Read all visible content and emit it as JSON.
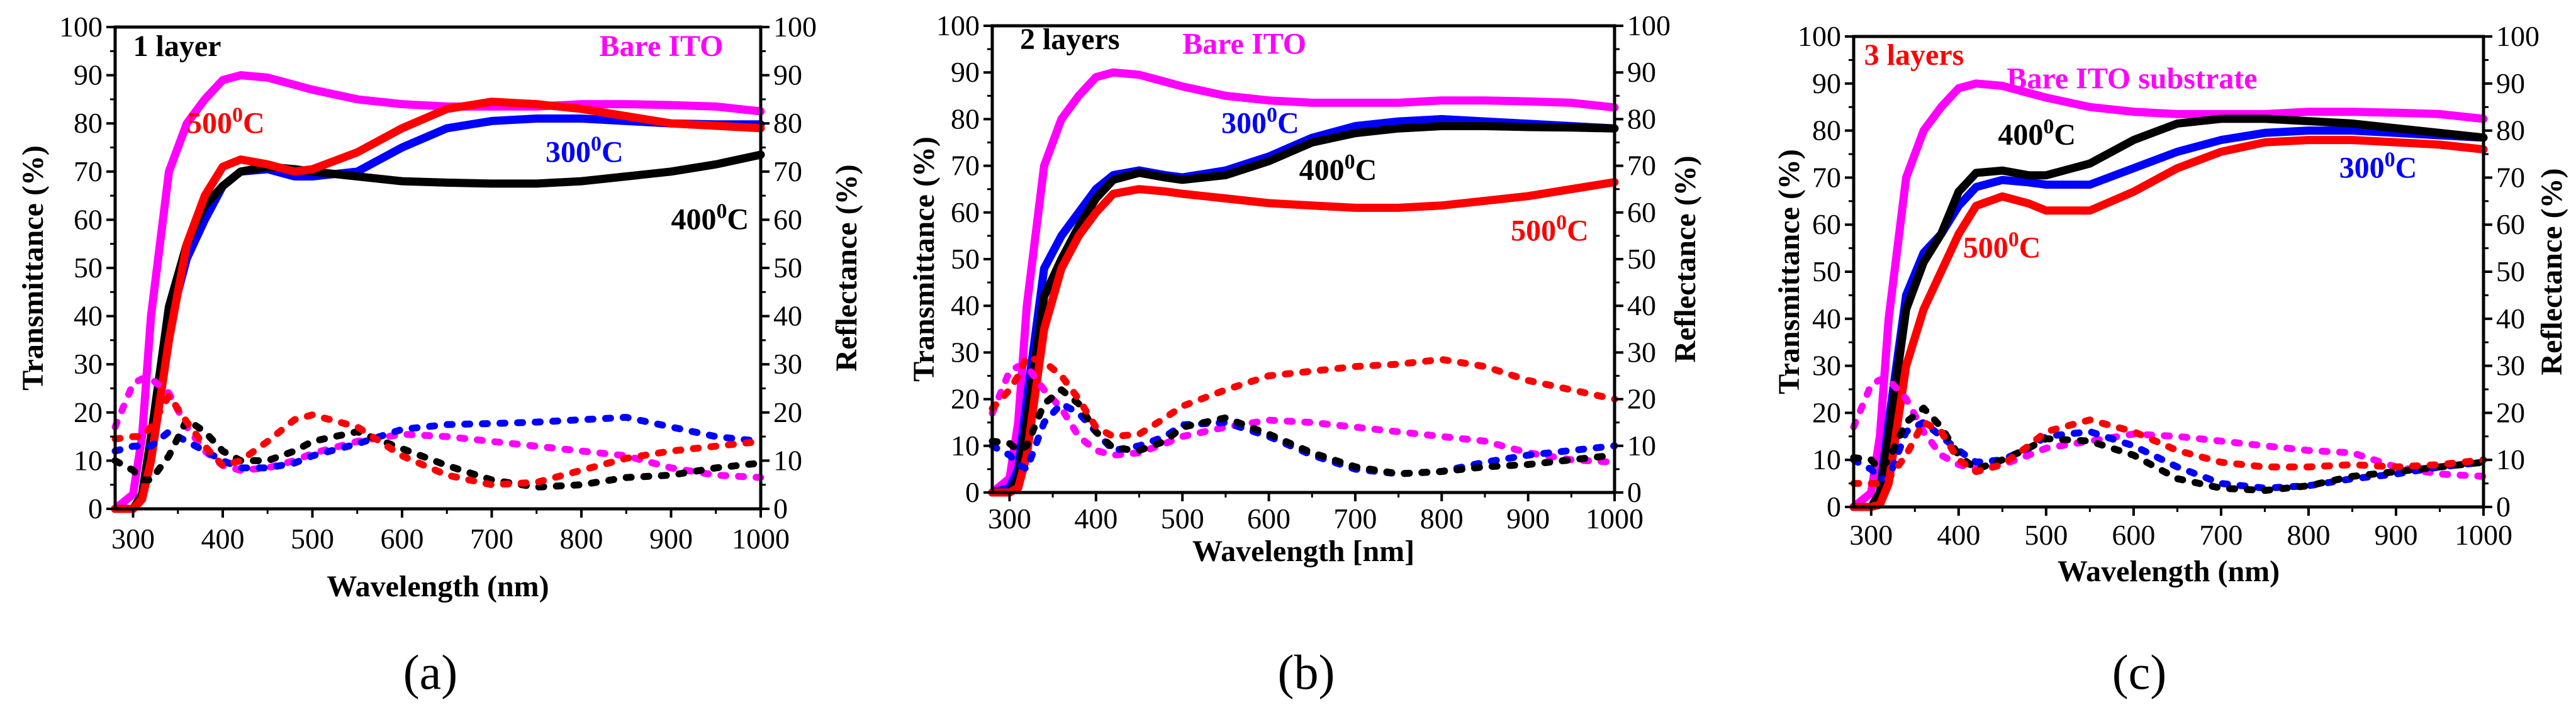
{
  "colors": {
    "bare": "#ff00ff",
    "c300": "#0000ff",
    "c400": "#000000",
    "c500": "#ff0000"
  },
  "chart_data": [
    {
      "type": "line",
      "caption": "(a)",
      "xlabel": "Wavelength (nm)",
      "ylabel_left": "Transmittance (%)",
      "ylabel_right": "Reflectance (%)",
      "xlim": [
        280,
        1000
      ],
      "ylim": [
        0,
        100
      ],
      "xticks": [
        300,
        400,
        500,
        600,
        700,
        800,
        900,
        1000
      ],
      "yticks": [
        0,
        10,
        20,
        30,
        40,
        50,
        60,
        70,
        80,
        90,
        100
      ],
      "x": [
        280,
        300,
        310,
        320,
        340,
        360,
        380,
        400,
        420,
        450,
        480,
        500,
        550,
        600,
        650,
        700,
        750,
        800,
        850,
        900,
        950,
        1000
      ],
      "series": [
        {
          "name": "Bare ITO T",
          "kind": "transmittance",
          "color": "#ff00ff",
          "values": [
            0,
            3,
            15,
            40,
            70,
            80,
            85,
            89,
            90,
            89.5,
            88,
            87,
            85,
            84,
            83.5,
            83.5,
            83.5,
            84,
            84,
            83.8,
            83.5,
            82.5
          ]
        },
        {
          "name": "300C T",
          "kind": "transmittance",
          "color": "#0000ff",
          "values": [
            0,
            0,
            2,
            12,
            38,
            52,
            60,
            67,
            70,
            70.5,
            69,
            69,
            70,
            75,
            79,
            80.5,
            81,
            81,
            80.5,
            80,
            79.8,
            79.8
          ]
        },
        {
          "name": "400C T",
          "kind": "transmittance",
          "color": "#000000",
          "values": [
            0,
            0,
            3,
            15,
            42,
            55,
            63,
            67,
            70,
            71,
            70.5,
            70,
            69,
            68,
            67.7,
            67.5,
            67.5,
            68,
            69,
            70,
            71.5,
            73.5
          ]
        },
        {
          "name": "500C T",
          "kind": "transmittance",
          "color": "#ff0000",
          "values": [
            0,
            0,
            2,
            10,
            35,
            55,
            65,
            71,
            72.5,
            71.5,
            70,
            70.5,
            74,
            79,
            83,
            84.5,
            84,
            83,
            81.5,
            80,
            79.5,
            79
          ]
        },
        {
          "name": "Bare ITO R",
          "kind": "reflectance",
          "color": "#ff00ff",
          "values": [
            17,
            26,
            27,
            27,
            24,
            17,
            12,
            9,
            8,
            8.5,
            10,
            11.5,
            14,
            15.5,
            15,
            14,
            13,
            12,
            11,
            8.5,
            7,
            6.5
          ]
        },
        {
          "name": "300C R",
          "kind": "reflectance",
          "color": "#0000ff",
          "values": [
            12,
            13,
            13,
            13,
            16,
            14,
            12,
            10,
            8.5,
            8.5,
            9.5,
            11,
            13.5,
            16.5,
            17.5,
            17.7,
            18,
            18.5,
            19,
            17,
            15,
            14
          ]
        },
        {
          "name": "400C R",
          "kind": "reflectance",
          "color": "#000000",
          "values": [
            10,
            8,
            6,
            6,
            11,
            18.5,
            16,
            12,
            10,
            10,
            12,
            14,
            16,
            12.5,
            9,
            6,
            4.5,
            5,
            6.5,
            7,
            8.5,
            9.5
          ]
        },
        {
          "name": "500C R",
          "kind": "reflectance",
          "color": "#ff0000",
          "values": [
            14.5,
            15,
            15,
            17,
            23.5,
            18,
            13,
            9,
            10,
            14,
            18.5,
            19.5,
            17,
            11,
            7,
            5,
            5.5,
            8,
            10.5,
            12,
            13,
            14
          ]
        }
      ],
      "annotations": [
        {
          "text": "1 layer",
          "sup": "",
          "suffix": "",
          "color": "#000000",
          "x": 300,
          "y": 94
        },
        {
          "text": "Bare ITO",
          "sup": "",
          "suffix": "",
          "color": "#ff00ff",
          "x": 820,
          "y": 94
        },
        {
          "text": "500",
          "sup": "0",
          "suffix": "C",
          "color": "#ff0000",
          "x": 360,
          "y": 78
        },
        {
          "text": "300",
          "sup": "0",
          "suffix": "C",
          "color": "#0000ff",
          "x": 760,
          "y": 72
        },
        {
          "text": "400",
          "sup": "0",
          "suffix": "C",
          "color": "#000000",
          "x": 900,
          "y": 58
        }
      ]
    },
    {
      "type": "line",
      "caption": "(b)",
      "xlabel": "Wavelength [nm]",
      "ylabel_left": "Transmittance (%)",
      "ylabel_right": "Reflectance (%)",
      "xlim": [
        280,
        1000
      ],
      "ylim": [
        0,
        100
      ],
      "xticks": [
        300,
        400,
        500,
        600,
        700,
        800,
        900,
        1000
      ],
      "yticks": [
        0,
        10,
        20,
        30,
        40,
        50,
        60,
        70,
        80,
        90,
        100
      ],
      "x": [
        280,
        300,
        310,
        320,
        340,
        360,
        380,
        400,
        420,
        450,
        480,
        500,
        550,
        600,
        650,
        700,
        750,
        800,
        850,
        900,
        950,
        1000
      ],
      "series": [
        {
          "name": "Bare ITO T",
          "kind": "transmittance",
          "color": "#ff00ff",
          "values": [
            0,
            3,
            15,
            40,
            70,
            80,
            85,
            89,
            90,
            89.5,
            88,
            87,
            85,
            84,
            83.5,
            83.5,
            83.5,
            84,
            84,
            83.8,
            83.5,
            82.5
          ]
        },
        {
          "name": "300C T",
          "kind": "transmittance",
          "color": "#0000ff",
          "values": [
            0,
            1,
            5,
            20,
            48,
            55,
            60,
            65,
            68,
            69,
            68,
            67.5,
            69,
            72,
            76,
            78.5,
            79.5,
            80,
            79.5,
            79,
            78.5,
            78
          ]
        },
        {
          "name": "400C T",
          "kind": "transmittance",
          "color": "#000000",
          "values": [
            0,
            0,
            3,
            15,
            42,
            50,
            57,
            63,
            67,
            68.5,
            67.5,
            67,
            68,
            71,
            75,
            77,
            78,
            78.5,
            78.5,
            78.3,
            78.2,
            78
          ]
        },
        {
          "name": "500C T",
          "kind": "transmittance",
          "color": "#ff0000",
          "values": [
            0,
            0,
            1,
            8,
            35,
            48,
            55,
            60,
            64,
            65,
            64.5,
            64,
            63,
            62,
            61.5,
            61,
            61,
            61.5,
            62.5,
            63.5,
            65,
            66.5
          ]
        },
        {
          "name": "Bare ITO R",
          "kind": "reflectance",
          "color": "#ff00ff",
          "values": [
            17,
            26,
            27,
            27,
            22,
            18,
            12,
            9,
            8,
            8.5,
            10.5,
            12,
            14,
            15.5,
            15,
            14,
            13,
            12,
            11,
            8.5,
            7,
            6.5
          ]
        },
        {
          "name": "300C R",
          "kind": "reflectance",
          "color": "#0000ff",
          "values": [
            10,
            8,
            6,
            5,
            15,
            19,
            17,
            13,
            9,
            10,
            12,
            14.5,
            15,
            12,
            8,
            5,
            4,
            4.5,
            6.5,
            8,
            9,
            10
          ]
        },
        {
          "name": "400C R",
          "kind": "reflectance",
          "color": "#000000",
          "values": [
            11,
            10.5,
            9,
            10,
            19,
            22,
            19,
            13,
            9.5,
            9,
            11,
            14,
            16,
            12.5,
            8.5,
            5.5,
            4,
            4.5,
            5.5,
            6,
            7,
            8
          ]
        },
        {
          "name": "500C R",
          "kind": "reflectance",
          "color": "#ff0000",
          "values": [
            18,
            22,
            25,
            29,
            28,
            25,
            20,
            14,
            12,
            12.5,
            16,
            18.5,
            22,
            25,
            26,
            27,
            27.5,
            28.5,
            27,
            24,
            22,
            20
          ]
        }
      ],
      "annotations": [
        {
          "text": "2 layers",
          "sup": "",
          "suffix": "",
          "color": "#000000",
          "x": 312,
          "y": 95
        },
        {
          "text": "Bare ITO",
          "sup": "",
          "suffix": "",
          "color": "#ff00ff",
          "x": 500,
          "y": 94
        },
        {
          "text": "300",
          "sup": "0",
          "suffix": "C",
          "color": "#0000ff",
          "x": 545,
          "y": 77
        },
        {
          "text": "400",
          "sup": "0",
          "suffix": "C",
          "color": "#000000",
          "x": 635,
          "y": 67
        },
        {
          "text": "500",
          "sup": "0",
          "suffix": "C",
          "color": "#ff0000",
          "x": 880,
          "y": 54
        }
      ]
    },
    {
      "type": "line",
      "caption": "(c)",
      "xlabel": "Wavelength (nm)",
      "ylabel_left": "Transmittance (%)",
      "ylabel_right": "Reflectance (%)",
      "xlim": [
        280,
        1000
      ],
      "ylim": [
        0,
        100
      ],
      "xticks": [
        300,
        400,
        500,
        600,
        700,
        800,
        900,
        1000
      ],
      "yticks": [
        0,
        10,
        20,
        30,
        40,
        50,
        60,
        70,
        80,
        90,
        100
      ],
      "x": [
        280,
        300,
        310,
        320,
        340,
        360,
        380,
        400,
        420,
        450,
        480,
        500,
        550,
        600,
        650,
        700,
        750,
        800,
        850,
        900,
        950,
        1000
      ],
      "series": [
        {
          "name": "Bare ITO T",
          "kind": "transmittance",
          "color": "#ff00ff",
          "values": [
            0,
            3,
            15,
            40,
            70,
            80,
            85,
            89,
            90,
            89.5,
            88,
            87,
            85,
            84,
            83.5,
            83.5,
            83.5,
            84,
            84,
            83.8,
            83.5,
            82.5
          ]
        },
        {
          "name": "300C T",
          "kind": "transmittance",
          "color": "#0000ff",
          "values": [
            0,
            0,
            3,
            18,
            45,
            54,
            58,
            64,
            68,
            69.5,
            69,
            68.5,
            68.5,
            72,
            75.5,
            78,
            79.5,
            80,
            80,
            79.5,
            79,
            78.5
          ]
        },
        {
          "name": "400C T",
          "kind": "transmittance",
          "color": "#000000",
          "values": [
            0,
            0,
            3,
            15,
            42,
            52,
            58,
            67,
            71,
            71.5,
            70.5,
            70.5,
            73,
            78,
            81.5,
            82.5,
            82.5,
            82,
            81.5,
            80.5,
            79.5,
            78.5
          ]
        },
        {
          "name": "500C T",
          "kind": "transmittance",
          "color": "#ff0000",
          "values": [
            0,
            0,
            0.5,
            5,
            30,
            42,
            50,
            58,
            64,
            66,
            64.5,
            63,
            63,
            67,
            72,
            75.5,
            77.5,
            78,
            78,
            77.5,
            77,
            76
          ]
        },
        {
          "name": "Bare ITO R",
          "kind": "reflectance",
          "color": "#ff00ff",
          "values": [
            17,
            26,
            27,
            27,
            23,
            16,
            11,
            9,
            8,
            9,
            11,
            12.5,
            14,
            15.5,
            15,
            14,
            13,
            12,
            11.5,
            8.5,
            7,
            6.5
          ]
        },
        {
          "name": "300C R",
          "kind": "reflectance",
          "color": "#0000ff",
          "values": [
            10,
            8,
            6,
            6,
            16,
            18,
            15,
            12,
            9.5,
            10,
            12.5,
            15,
            16,
            13,
            8.5,
            5,
            4,
            4.5,
            6,
            7,
            8.5,
            9.5
          ]
        },
        {
          "name": "400C R",
          "kind": "reflectance",
          "color": "#000000",
          "values": [
            10.5,
            10,
            8,
            10,
            18,
            21,
            17,
            11,
            8,
            10,
            12.5,
            14.5,
            14,
            11,
            6,
            4,
            3.5,
            4.5,
            6.5,
            7.5,
            8.5,
            9.5
          ]
        },
        {
          "name": "500C R",
          "kind": "reflectance",
          "color": "#ff0000",
          "values": [
            5,
            5,
            5,
            6,
            11,
            18,
            16,
            10,
            7.5,
            9,
            13,
            16,
            18.5,
            16,
            12,
            9.5,
            8.5,
            8.5,
            9,
            8.5,
            9,
            10
          ]
        }
      ],
      "annotations": [
        {
          "text": "3 layers",
          "sup": "",
          "suffix": "",
          "color": "#ff0000",
          "x": 292,
          "y": 94
        },
        {
          "text": "Bare ITO substrate",
          "sup": "",
          "suffix": "",
          "color": "#ff00ff",
          "x": 455,
          "y": 89
        },
        {
          "text": "400",
          "sup": "0",
          "suffix": "C",
          "color": "#000000",
          "x": 445,
          "y": 77
        },
        {
          "text": "300",
          "sup": "0",
          "suffix": "C",
          "color": "#0000ff",
          "x": 835,
          "y": 70
        },
        {
          "text": "500",
          "sup": "0",
          "suffix": "C",
          "color": "#ff0000",
          "x": 405,
          "y": 53
        }
      ]
    }
  ]
}
